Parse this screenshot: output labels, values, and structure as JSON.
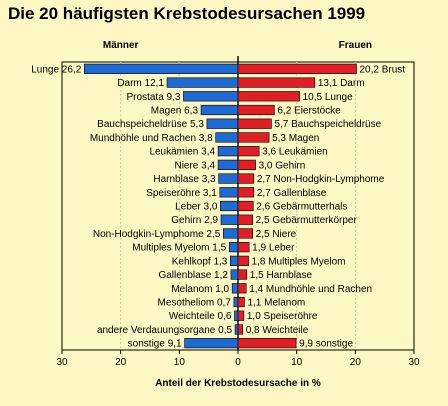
{
  "title": "Die 20 häufigsten Krebstodesursachen 1999",
  "chart_data": {
    "type": "bar",
    "orientation": "horizontal-butterfly",
    "title": "Die 20 häufigsten Krebstodesursachen 1999",
    "xlabel": "Anteil der Krebstodesursache in %",
    "xlim": [
      -30,
      30
    ],
    "x_ticks": [
      "30",
      "20",
      "10",
      "0",
      "10",
      "20",
      "30"
    ],
    "grid": true,
    "left": {
      "name": "Männer",
      "color": "#1f6ad2",
      "items": [
        {
          "label": "Lunge",
          "value": 26.2,
          "text": "26,2"
        },
        {
          "label": "Darm",
          "value": 12.1,
          "text": "12,1"
        },
        {
          "label": "Prostata",
          "value": 9.3,
          "text": "9,3"
        },
        {
          "label": "Magen",
          "value": 6.3,
          "text": "6,3"
        },
        {
          "label": "Bauchspeicheldrüse",
          "value": 5.3,
          "text": "5,3"
        },
        {
          "label": "Mundhöhle und Rachen",
          "value": 3.8,
          "text": "3,8"
        },
        {
          "label": "Leukämien",
          "value": 3.4,
          "text": "3,4"
        },
        {
          "label": "Niere",
          "value": 3.4,
          "text": "3,4"
        },
        {
          "label": "Harnblase",
          "value": 3.3,
          "text": "3,3"
        },
        {
          "label": "Speiseröhre",
          "value": 3.1,
          "text": "3,1"
        },
        {
          "label": "Leber",
          "value": 3.0,
          "text": "3,0"
        },
        {
          "label": "Gehirn",
          "value": 2.9,
          "text": "2,9"
        },
        {
          "label": "Non-Hodgkin-Lymphome",
          "value": 2.5,
          "text": "2,5"
        },
        {
          "label": "Multiples Myelom",
          "value": 1.5,
          "text": "1,5"
        },
        {
          "label": "Kehlkopf",
          "value": 1.3,
          "text": "1,3"
        },
        {
          "label": "Gallenblase",
          "value": 1.2,
          "text": "1,2"
        },
        {
          "label": "Melanom",
          "value": 1.0,
          "text": "1,0"
        },
        {
          "label": "Mesotheliom",
          "value": 0.7,
          "text": "0,7"
        },
        {
          "label": "Weichteile",
          "value": 0.6,
          "text": "0,6"
        },
        {
          "label": "andere Verdauungsorgane",
          "value": 0.5,
          "text": "0,5"
        },
        {
          "label": "sonstige",
          "value": 9.1,
          "text": "9,1"
        }
      ]
    },
    "right": {
      "name": "Frauen",
      "color": "#e01e26",
      "items": [
        {
          "label": "Brust",
          "value": 20.2,
          "text": "20,2"
        },
        {
          "label": "Darm",
          "value": 13.1,
          "text": "13,1"
        },
        {
          "label": "Lunge",
          "value": 10.5,
          "text": "10,5"
        },
        {
          "label": "Eierstöcke",
          "value": 6.2,
          "text": "6,2"
        },
        {
          "label": "Bauchspeicheldrüse",
          "value": 5.7,
          "text": "5,7"
        },
        {
          "label": "Magen",
          "value": 5.3,
          "text": "5,3"
        },
        {
          "label": "Leukämien",
          "value": 3.6,
          "text": "3,6"
        },
        {
          "label": "Gehirn",
          "value": 3.0,
          "text": "3,0"
        },
        {
          "label": "Non-Hodgkin-Lymphome",
          "value": 2.7,
          "text": "2,7"
        },
        {
          "label": "Gallenblase",
          "value": 2.7,
          "text": "2,7"
        },
        {
          "label": "Gebärmutterhals",
          "value": 2.6,
          "text": "2,6"
        },
        {
          "label": "Gebärmutterkörper",
          "value": 2.5,
          "text": "2,5"
        },
        {
          "label": "Niere",
          "value": 2.5,
          "text": "2,5"
        },
        {
          "label": "Leber",
          "value": 1.9,
          "text": "1,9"
        },
        {
          "label": "Multiples Myelom",
          "value": 1.8,
          "text": "1,8"
        },
        {
          "label": "Harnblase",
          "value": 1.5,
          "text": "1,5"
        },
        {
          "label": "Mundhöhle und Rachen",
          "value": 1.4,
          "text": "1,4"
        },
        {
          "label": "Melanom",
          "value": 1.1,
          "text": "1,1"
        },
        {
          "label": "Speiseröhre",
          "value": 1.0,
          "text": "1,0"
        },
        {
          "label": "Weichteile",
          "value": 0.8,
          "text": "0,8"
        },
        {
          "label": "sonstige",
          "value": 9.9,
          "text": "9,9"
        }
      ]
    }
  }
}
